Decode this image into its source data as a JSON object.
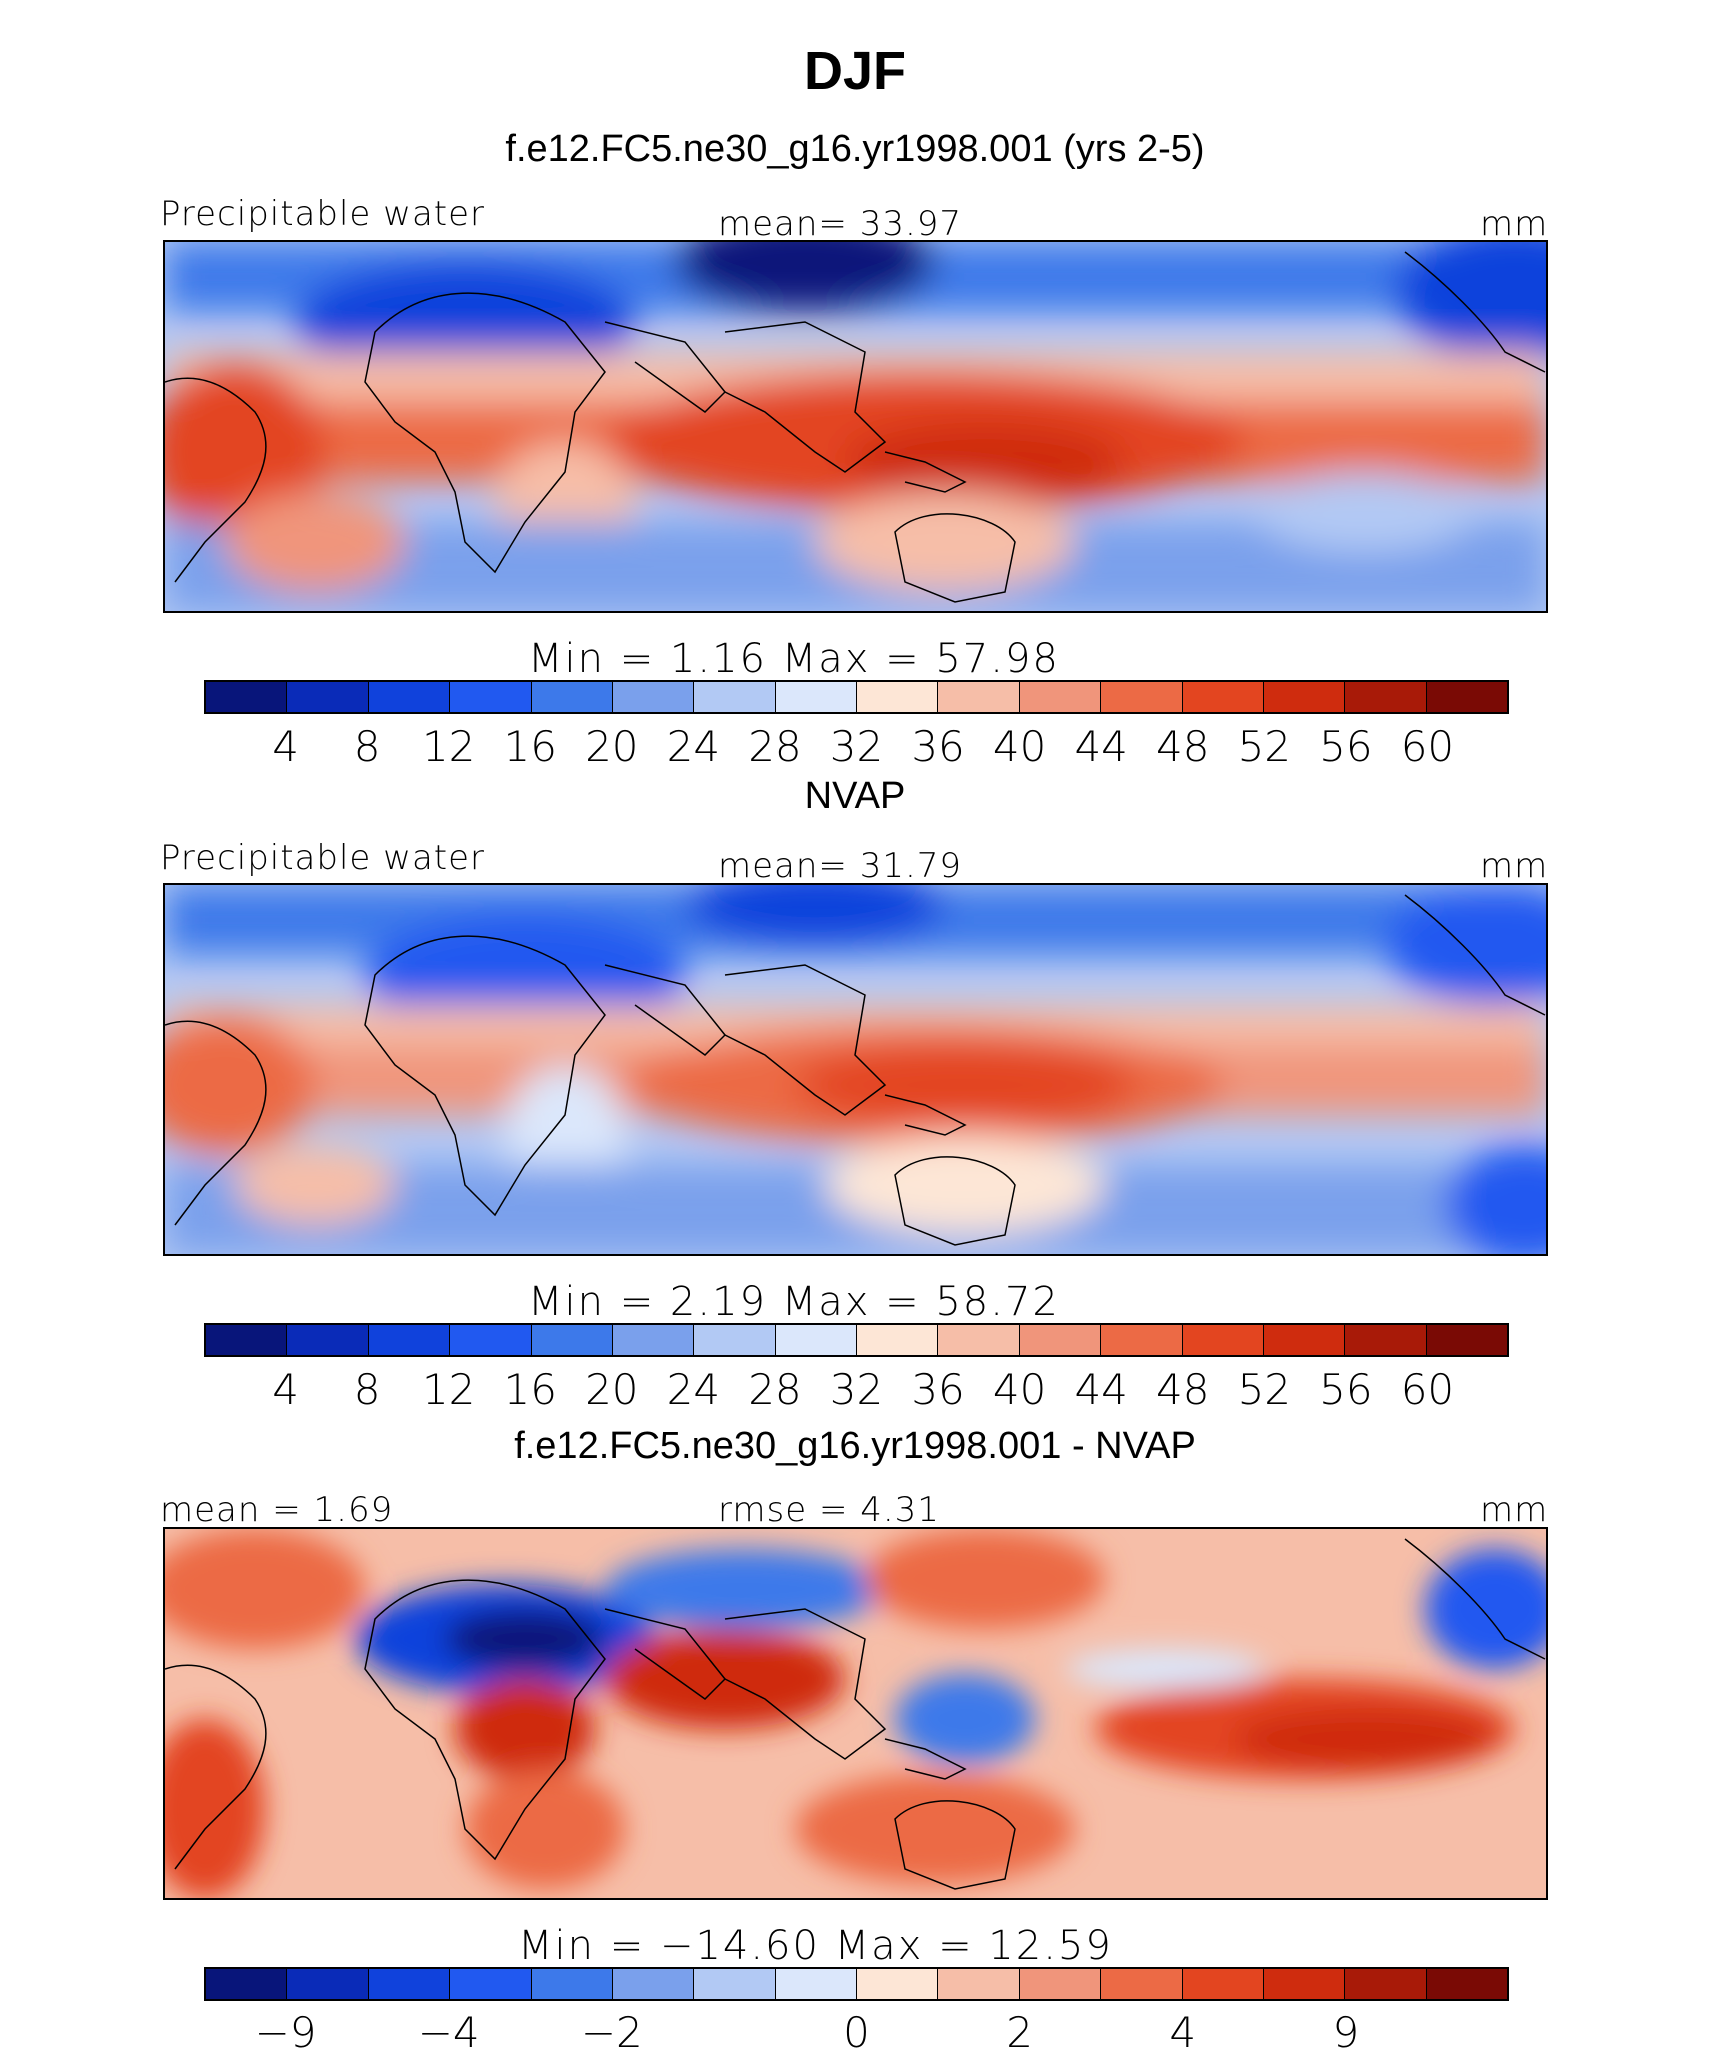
{
  "title": "DJF",
  "color_scales": {
    "abs": [
      "#08157a",
      "#0a2bb8",
      "#1042dc",
      "#2159f0",
      "#3d79ea",
      "#7aa0ec",
      "#b2c9f4",
      "#dbe7fb",
      "#fde6d6",
      "#f6bea8",
      "#f0957b",
      "#ec6a45",
      "#e34520",
      "#cf2c0e",
      "#a81a08",
      "#7a0a05"
    ],
    "diff": [
      "#08157a",
      "#0a2bb8",
      "#1042dc",
      "#2159f0",
      "#3d79ea",
      "#7aa0ec",
      "#b2c9f4",
      "#dbe7fb",
      "#fde6d6",
      "#f6bea8",
      "#f0957b",
      "#ec6a45",
      "#e34520",
      "#cf2c0e",
      "#a81a08",
      "#7a0a05"
    ]
  },
  "panels": [
    {
      "subtitle": "f.e12.FC5.ne30_g16.yr1998.001 (yrs 2-5)",
      "left_label": "Precipitable water",
      "center_label": "mean=   33.97",
      "right_label": "mm",
      "stats": "Min  =    1.16  Max  =   57.98",
      "ticks": [
        "4",
        "8",
        "12",
        "16",
        "20",
        "24",
        "28",
        "32",
        "36",
        "40",
        "44",
        "48",
        "52",
        "56",
        "60"
      ]
    },
    {
      "subtitle": "NVAP",
      "left_label": "Precipitable water",
      "center_label": "mean=   31.79",
      "right_label": "mm",
      "stats": "Min  =    2.19  Max  =   58.72",
      "ticks": [
        "4",
        "8",
        "12",
        "16",
        "20",
        "24",
        "28",
        "32",
        "36",
        "40",
        "44",
        "48",
        "52",
        "56",
        "60"
      ]
    },
    {
      "subtitle": "f.e12.FC5.ne30_g16.yr1998.001 - NVAP",
      "left_label": "mean  =    1.69",
      "center_label": "rmse  =    4.31",
      "right_label": "mm",
      "stats": "Min  = −14.60  Max  =   12.59",
      "ticks": [
        "−9",
        "−4",
        "−2",
        "0",
        "2",
        "4",
        "9"
      ]
    }
  ],
  "chart_data": [
    {
      "type": "heatmap",
      "title": "f.e12.FC5.ne30_g16.yr1998.001 (yrs 2-5)",
      "variable": "Precipitable water",
      "units": "mm",
      "mean": 33.97,
      "min": 1.16,
      "max": 57.98,
      "contour_levels": [
        4,
        8,
        12,
        16,
        20,
        24,
        28,
        32,
        36,
        40,
        44,
        48,
        52,
        56,
        60
      ]
    },
    {
      "type": "heatmap",
      "title": "NVAP",
      "variable": "Precipitable water",
      "units": "mm",
      "mean": 31.79,
      "min": 2.19,
      "max": 58.72,
      "contour_levels": [
        4,
        8,
        12,
        16,
        20,
        24,
        28,
        32,
        36,
        40,
        44,
        48,
        52,
        56,
        60
      ]
    },
    {
      "type": "heatmap",
      "title": "f.e12.FC5.ne30_g16.yr1998.001 - NVAP",
      "units": "mm",
      "mean": 1.69,
      "rmse": 4.31,
      "min": -14.6,
      "max": 12.59,
      "contour_levels": [
        -9,
        -4,
        -2,
        0,
        2,
        4,
        9
      ]
    }
  ]
}
